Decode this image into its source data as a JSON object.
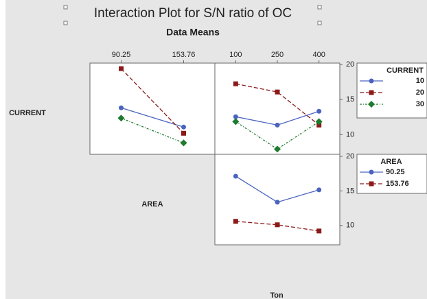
{
  "title": "Interaction Plot for S/N ratio of  OC",
  "subtitle": "Data Means",
  "factors": [
    "CURRENT",
    "AREA",
    "Ton"
  ],
  "chart_data": [
    {
      "type": "line",
      "categories": [
        "90.25",
        "153.76"
      ],
      "ylim": [
        7.2,
        20.2
      ],
      "series": [
        {
          "name": "10",
          "color": "#4a63c0",
          "marker": "circle",
          "dash": "solid",
          "values": [
            13.82,
            11.08
          ]
        },
        {
          "name": "20",
          "color": "#8b1a1a",
          "marker": "square",
          "dash": "dashed",
          "values": [
            19.41,
            10.2
          ]
        },
        {
          "name": "30",
          "color": "#1e7b2e",
          "marker": "diamond",
          "dash": "dashdot",
          "values": [
            12.35,
            8.82
          ]
        }
      ]
    },
    {
      "type": "line",
      "categories": [
        "100",
        "250",
        "400"
      ],
      "ylim": [
        7.2,
        20.2
      ],
      "yticks": [
        10,
        15,
        20
      ],
      "legend_title": "CURRENT",
      "series": [
        {
          "name": "10",
          "color": "#4a63c0",
          "marker": "circle",
          "dash": "solid",
          "values": [
            12.55,
            11.37,
            13.33
          ]
        },
        {
          "name": "20",
          "color": "#8b1a1a",
          "marker": "square",
          "dash": "dashed",
          "values": [
            17.25,
            16.08,
            11.37
          ]
        },
        {
          "name": "30",
          "color": "#1e7b2e",
          "marker": "diamond",
          "dash": "dashdot",
          "values": [
            11.86,
            7.94,
            11.86
          ]
        }
      ]
    },
    {
      "type": "line",
      "categories": [
        null,
        null,
        null
      ],
      "ylim": [
        7.2,
        20.3
      ],
      "yticks": [
        10,
        15,
        20
      ],
      "legend_title": "AREA",
      "series": [
        {
          "name": "90.25",
          "color": "#4a63c0",
          "marker": "circle",
          "dash": "solid",
          "values": [
            17.13,
            13.37,
            15.15
          ]
        },
        {
          "name": "153.76",
          "color": "#8b1a1a",
          "marker": "square",
          "dash": "dashed",
          "values": [
            10.6,
            10.1,
            9.2
          ]
        }
      ]
    }
  ]
}
